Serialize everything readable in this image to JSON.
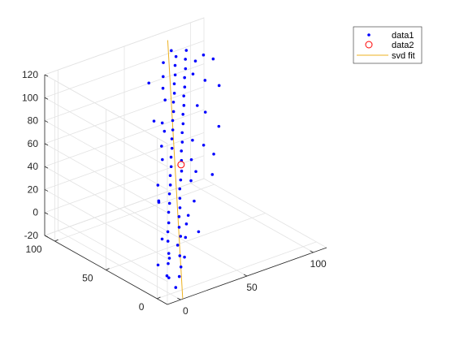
{
  "chart_data": {
    "type": "scatter",
    "projection": "3d",
    "grid": true,
    "box": "open",
    "legend_placement": "top-right",
    "axes": {
      "x": {
        "ticks": [
          0,
          50,
          100
        ],
        "tick_labels": [
          "0",
          "50",
          "100"
        ],
        "range": [
          -10,
          110
        ]
      },
      "y": {
        "ticks": [
          0,
          50,
          100
        ],
        "tick_labels": [
          "0",
          "50",
          "100"
        ],
        "range": [
          -10,
          110
        ]
      },
      "z": {
        "ticks": [
          -20,
          0,
          20,
          40,
          60,
          80,
          100,
          120
        ],
        "tick_labels": [
          "-20",
          "0",
          "20",
          "40",
          "60",
          "80",
          "100",
          "120"
        ],
        "range": [
          -20,
          120
        ]
      }
    },
    "series": [
      {
        "name": "data1",
        "kind": "points",
        "marker": "dot",
        "color": "#0000FF",
        "points": [
          [
            4,
            0,
            -16
          ],
          [
            9,
            3,
            -10
          ],
          [
            2,
            6,
            -8
          ],
          [
            11,
            4,
            -3
          ],
          [
            6,
            10,
            -1
          ],
          [
            14,
            9,
            3
          ],
          [
            8,
            12,
            6
          ],
          [
            17,
            15,
            8
          ],
          [
            12,
            18,
            12
          ],
          [
            20,
            16,
            14
          ],
          [
            15,
            22,
            17
          ],
          [
            22,
            20,
            19
          ],
          [
            18,
            25,
            22
          ],
          [
            25,
            24,
            25
          ],
          [
            21,
            29,
            28
          ],
          [
            28,
            27,
            30
          ],
          [
            24,
            32,
            33
          ],
          [
            31,
            31,
            35
          ],
          [
            27,
            36,
            38
          ],
          [
            34,
            35,
            40
          ],
          [
            30,
            39,
            43
          ],
          [
            37,
            38,
            45
          ],
          [
            33,
            43,
            48
          ],
          [
            40,
            41,
            50
          ],
          [
            36,
            46,
            53
          ],
          [
            43,
            45,
            56
          ],
          [
            39,
            50,
            58
          ],
          [
            46,
            49,
            61
          ],
          [
            42,
            53,
            63
          ],
          [
            49,
            52,
            66
          ],
          [
            45,
            57,
            68
          ],
          [
            52,
            56,
            71
          ],
          [
            48,
            60,
            73
          ],
          [
            55,
            59,
            76
          ],
          [
            51,
            64,
            78
          ],
          [
            58,
            63,
            81
          ],
          [
            54,
            67,
            83
          ],
          [
            61,
            66,
            86
          ],
          [
            57,
            71,
            88
          ],
          [
            64,
            70,
            91
          ],
          [
            60,
            74,
            93
          ],
          [
            67,
            73,
            96
          ],
          [
            63,
            78,
            98
          ],
          [
            70,
            77,
            101
          ],
          [
            66,
            81,
            103
          ],
          [
            73,
            80,
            106
          ],
          [
            69,
            85,
            108
          ],
          [
            76,
            84,
            111
          ],
          [
            72,
            88,
            113
          ],
          [
            79,
            87,
            116
          ],
          [
            10,
            14,
            0
          ],
          [
            26,
            19,
            9
          ],
          [
            35,
            28,
            20
          ],
          [
            22,
            40,
            32
          ],
          [
            44,
            37,
            42
          ],
          [
            52,
            47,
            52
          ],
          [
            38,
            58,
            64
          ],
          [
            59,
            55,
            62
          ],
          [
            47,
            69,
            75
          ],
          [
            68,
            62,
            85
          ],
          [
            56,
            80,
            96
          ],
          [
            74,
            74,
            104
          ],
          [
            64,
            90,
            110
          ],
          [
            82,
            82,
            108
          ],
          [
            5,
            8,
            -12
          ],
          [
            16,
            7,
            2
          ],
          [
            29,
            22,
            18
          ],
          [
            41,
            30,
            29
          ],
          [
            19,
            36,
            34
          ],
          [
            50,
            40,
            46
          ],
          [
            34,
            52,
            57
          ],
          [
            62,
            48,
            60
          ],
          [
            44,
            63,
            72
          ],
          [
            71,
            58,
            80
          ],
          [
            53,
            74,
            90
          ],
          [
            80,
            70,
            98
          ],
          [
            60,
            85,
            102
          ],
          [
            85,
            78,
            114
          ],
          [
            3,
            16,
            -4
          ],
          [
            13,
            25,
            10
          ],
          [
            32,
            14,
            14
          ],
          [
            57,
            33,
            44
          ],
          [
            26,
            46,
            41
          ],
          [
            65,
            42,
            54
          ],
          [
            40,
            68,
            80
          ],
          [
            75,
            50,
            70
          ],
          [
            50,
            86,
            100
          ],
          [
            86,
            64,
            94
          ],
          [
            70,
            90,
            118
          ],
          [
            90,
            75,
            110
          ]
        ]
      },
      {
        "name": "data2",
        "kind": "centroid",
        "marker": "open-circle",
        "color": "#FF0000",
        "points": [
          [
            45,
            48,
            50
          ]
        ]
      },
      {
        "name": "svd fit",
        "kind": "line",
        "color": "#EDB120",
        "points": [
          [
            0,
            -12,
            -18
          ],
          [
            75,
            100,
            120
          ]
        ]
      }
    ]
  }
}
